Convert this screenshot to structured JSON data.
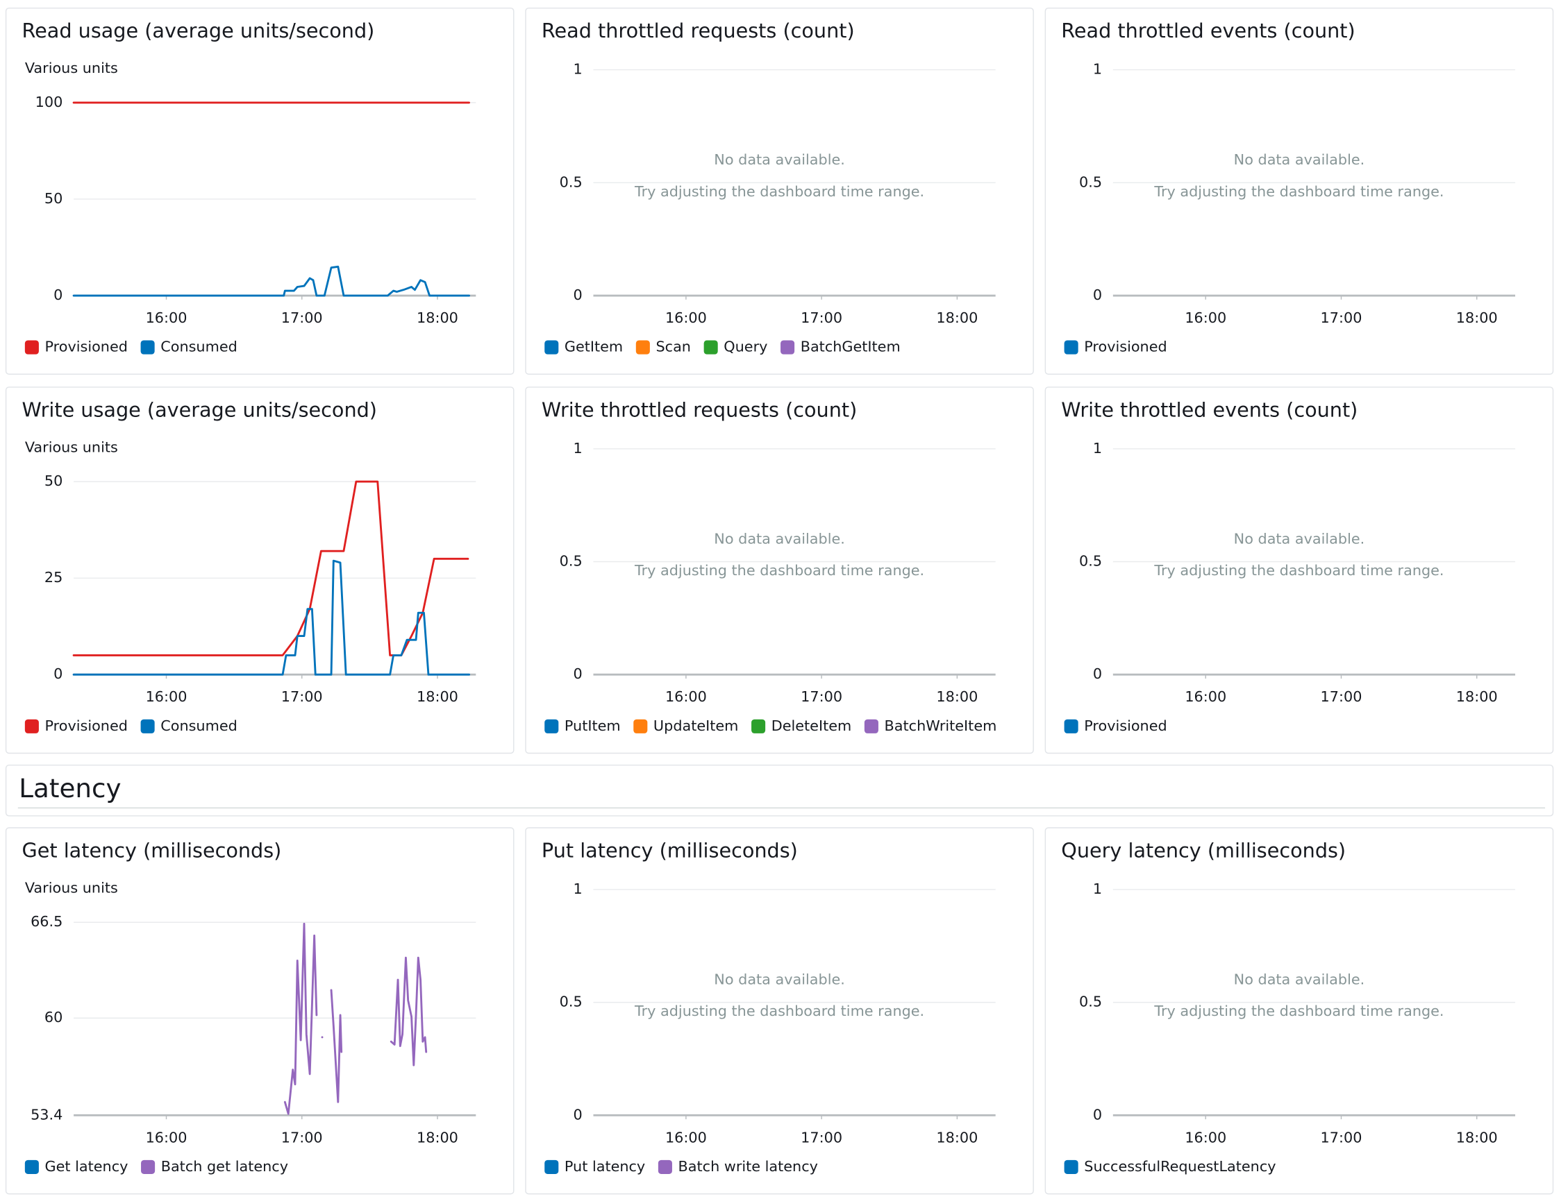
{
  "section_title": "Latency",
  "chart_data": [
    {
      "type": "line",
      "title": "Read usage (average units/second)",
      "y_label": "Various units",
      "xlim": [
        919,
        1097
      ],
      "xticks": [
        {
          "value": 960,
          "label": "16:00"
        },
        {
          "value": 1020,
          "label": "17:00"
        },
        {
          "value": 1080,
          "label": "18:00"
        }
      ],
      "ylim": [
        0,
        100
      ],
      "yticks": [
        0,
        50,
        100
      ],
      "series": [
        {
          "name": "Provisioned",
          "color": "#e02020",
          "x": [
            919,
            1094
          ],
          "values": [
            100,
            100
          ]
        },
        {
          "name": "Consumed",
          "color": "#0073bb",
          "x": [
            919,
            1012,
            1012.5,
            1016.5,
            1018,
            1021,
            1023.5,
            1025,
            1026.5,
            1030,
            1033,
            1036,
            1038.5,
            1058,
            1060.5,
            1062,
            1065,
            1068.5,
            1070,
            1072.5,
            1074.5,
            1076.5,
            1094
          ],
          "values": [
            0,
            0,
            2.5,
            2.5,
            4.5,
            5,
            9,
            8,
            0,
            0,
            14.5,
            15,
            0,
            0,
            2.5,
            2,
            3,
            4.5,
            3,
            8,
            7,
            0,
            0
          ]
        }
      ]
    },
    {
      "type": "line",
      "title": "Read throttled requests (count)",
      "no_data": [
        "No data available.",
        "Try adjusting the dashboard time range."
      ],
      "xlim": [
        919,
        1097
      ],
      "xticks": [
        {
          "value": 960,
          "label": "16:00"
        },
        {
          "value": 1020,
          "label": "17:00"
        },
        {
          "value": 1080,
          "label": "18:00"
        }
      ],
      "ylim": [
        0,
        1
      ],
      "yticks": [
        0,
        0.5,
        1
      ],
      "series": [
        {
          "name": "GetItem",
          "color": "#0073bb"
        },
        {
          "name": "Scan",
          "color": "#ff7f0e"
        },
        {
          "name": "Query",
          "color": "#2ca02c"
        },
        {
          "name": "BatchGetItem",
          "color": "#9467bd"
        }
      ]
    },
    {
      "type": "line",
      "title": "Read throttled events (count)",
      "no_data": [
        "No data available.",
        "Try adjusting the dashboard time range."
      ],
      "xlim": [
        919,
        1097
      ],
      "xticks": [
        {
          "value": 960,
          "label": "16:00"
        },
        {
          "value": 1020,
          "label": "17:00"
        },
        {
          "value": 1080,
          "label": "18:00"
        }
      ],
      "ylim": [
        0,
        1
      ],
      "yticks": [
        0,
        0.5,
        1
      ],
      "series": [
        {
          "name": "Provisioned",
          "color": "#0073bb"
        }
      ]
    },
    {
      "type": "line",
      "title": "Write usage (average units/second)",
      "y_label": "Various units",
      "xlim": [
        919,
        1097
      ],
      "xticks": [
        {
          "value": 960,
          "label": "16:00"
        },
        {
          "value": 1020,
          "label": "17:00"
        },
        {
          "value": 1080,
          "label": "18:00"
        }
      ],
      "ylim": [
        0,
        50
      ],
      "yticks": [
        0,
        25,
        50
      ],
      "series": [
        {
          "name": "Provisioned",
          "color": "#e02020",
          "x": [
            919,
            1011.5,
            1018,
            1023.5,
            1028.5,
            1038.5,
            1044,
            1053.5,
            1059,
            1064,
            1068.5,
            1073.5,
            1078.5,
            1093.5
          ],
          "values": [
            5,
            5,
            10,
            17,
            32,
            32,
            50,
            50,
            5,
            5,
            10,
            16,
            30,
            30
          ]
        },
        {
          "name": "Consumed",
          "color": "#0073bb",
          "x": [
            919,
            1011.5,
            1013,
            1017,
            1018,
            1021,
            1022.5,
            1024.5,
            1026,
            1033,
            1034,
            1037,
            1039.5,
            1059,
            1060.5,
            1064,
            1066.5,
            1070.5,
            1071.5,
            1074,
            1076,
            1094
          ],
          "values": [
            0,
            0,
            5,
            5,
            10,
            10,
            17,
            17,
            0,
            0,
            29.5,
            29,
            0,
            0,
            5,
            5,
            9,
            9,
            16,
            16,
            0,
            0
          ]
        }
      ]
    },
    {
      "type": "line",
      "title": "Write throttled requests (count)",
      "no_data": [
        "No data available.",
        "Try adjusting the dashboard time range."
      ],
      "xlim": [
        919,
        1097
      ],
      "xticks": [
        {
          "value": 960,
          "label": "16:00"
        },
        {
          "value": 1020,
          "label": "17:00"
        },
        {
          "value": 1080,
          "label": "18:00"
        }
      ],
      "ylim": [
        0,
        1
      ],
      "yticks": [
        0,
        0.5,
        1
      ],
      "series": [
        {
          "name": "PutItem",
          "color": "#0073bb"
        },
        {
          "name": "UpdateItem",
          "color": "#ff7f0e"
        },
        {
          "name": "DeleteItem",
          "color": "#2ca02c"
        },
        {
          "name": "BatchWriteItem",
          "color": "#9467bd"
        }
      ]
    },
    {
      "type": "line",
      "title": "Write throttled events (count)",
      "no_data": [
        "No data available.",
        "Try adjusting the dashboard time range."
      ],
      "xlim": [
        919,
        1097
      ],
      "xticks": [
        {
          "value": 960,
          "label": "16:00"
        },
        {
          "value": 1020,
          "label": "17:00"
        },
        {
          "value": 1080,
          "label": "18:00"
        }
      ],
      "ylim": [
        0,
        1
      ],
      "yticks": [
        0,
        0.5,
        1
      ],
      "series": [
        {
          "name": "Provisioned",
          "color": "#0073bb"
        }
      ]
    },
    {
      "type": "line",
      "title": "Get latency (milliseconds)",
      "y_label": "Various units",
      "xlim": [
        919,
        1097
      ],
      "xticks": [
        {
          "value": 960,
          "label": "16:00"
        },
        {
          "value": 1020,
          "label": "17:00"
        },
        {
          "value": 1080,
          "label": "18:00"
        }
      ],
      "ylim": [
        53.4,
        66.5
      ],
      "yticks": [
        53.4,
        60,
        66.5
      ],
      "series": [
        {
          "name": "Get latency",
          "color": "#0073bb"
        },
        {
          "name": "Batch get latency",
          "color": "#9467bd",
          "x": [
            1012.5,
            1014,
            1016,
            1017,
            1018,
            1019.5,
            1021,
            1022,
            1023.5,
            1025.5,
            1026.5,
            1027.5,
            1029,
            1031,
            1033,
            1034,
            1036,
            1037,
            1037.5,
            1048,
            1059.5,
            1061,
            1062.5,
            1063.5,
            1064.5,
            1066,
            1067,
            1068.5,
            1069.5,
            1070.5,
            1071.5,
            1072.5,
            1073.5,
            1074.5,
            1075
          ],
          "values": [
            54.3,
            53.5,
            56.5,
            55.5,
            63.9,
            58.5,
            66.4,
            58.9,
            56.2,
            65.6,
            60.2,
            null,
            58.7,
            null,
            61.9,
            59.5,
            54.3,
            60.2,
            57.7,
            null,
            58.4,
            58.2,
            62.6,
            58.1,
            58.9,
            64.1,
            61.2,
            60.1,
            56.8,
            60.2,
            64.1,
            62.6,
            58.4,
            58.7,
            57.7
          ]
        }
      ]
    },
    {
      "type": "line",
      "title": "Put latency (milliseconds)",
      "no_data": [
        "No data available.",
        "Try adjusting the dashboard time range."
      ],
      "xlim": [
        919,
        1097
      ],
      "xticks": [
        {
          "value": 960,
          "label": "16:00"
        },
        {
          "value": 1020,
          "label": "17:00"
        },
        {
          "value": 1080,
          "label": "18:00"
        }
      ],
      "ylim": [
        0,
        1
      ],
      "yticks": [
        0,
        0.5,
        1
      ],
      "series": [
        {
          "name": "Put latency",
          "color": "#0073bb"
        },
        {
          "name": "Batch write latency",
          "color": "#9467bd"
        }
      ]
    },
    {
      "type": "line",
      "title": "Query latency (milliseconds)",
      "no_data": [
        "No data available.",
        "Try adjusting the dashboard time range."
      ],
      "xlim": [
        919,
        1097
      ],
      "xticks": [
        {
          "value": 960,
          "label": "16:00"
        },
        {
          "value": 1020,
          "label": "17:00"
        },
        {
          "value": 1080,
          "label": "18:00"
        }
      ],
      "ylim": [
        0,
        1
      ],
      "yticks": [
        0,
        0.5,
        1
      ],
      "series": [
        {
          "name": "SuccessfulRequestLatency",
          "color": "#0073bb"
        }
      ]
    }
  ]
}
